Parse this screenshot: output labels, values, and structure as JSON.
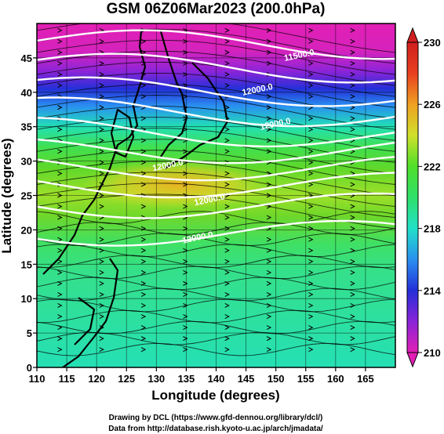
{
  "chart_data": {
    "type": "heatmap",
    "title": "GSM 06Z06Mar2023 (200.0hPa)",
    "xlabel": "Longitude (degrees)",
    "ylabel": "Latitude  (degrees)",
    "xlim": [
      110,
      170
    ],
    "ylim": [
      0,
      50
    ],
    "x_ticks": [
      110,
      115,
      120,
      125,
      130,
      135,
      140,
      145,
      150,
      155,
      160,
      165
    ],
    "y_ticks": [
      0,
      5,
      10,
      15,
      20,
      25,
      30,
      35,
      40,
      45
    ],
    "grid": true,
    "colorbar": {
      "min": 210,
      "max": 230,
      "ticks": [
        210,
        214,
        218,
        222,
        226,
        230
      ],
      "colors": [
        "#e21fb4",
        "#8a24d8",
        "#2430d8",
        "#2aa0f0",
        "#22e0c8",
        "#2fe06a",
        "#6ed82a",
        "#cfe02a",
        "#f0a023",
        "#e8401f",
        "#d01f1f"
      ]
    },
    "temperature_field": {
      "description_units": "K",
      "zones": [
        {
          "lat_from": 50,
          "lat_to": 44,
          "value": 210
        },
        {
          "lat_from": 44,
          "lat_to": 40,
          "value": 213
        },
        {
          "lat_from": 40,
          "lat_to": 36,
          "value": 218
        },
        {
          "lat_from": 36,
          "lat_to": 32,
          "value": 221
        },
        {
          "lat_from": 32,
          "lat_to": 28,
          "value": 223
        },
        {
          "lat_from": 28,
          "lat_to": 20,
          "value": 221
        },
        {
          "lat_from": 20,
          "lat_to": 0,
          "value": 219
        }
      ]
    },
    "contour_labels": [
      {
        "text": "11500.0",
        "lon": 154,
        "lat": 45
      },
      {
        "text": "12000.0",
        "lon": 147,
        "lat": 40
      },
      {
        "text": "12000.0",
        "lon": 150,
        "lat": 35
      },
      {
        "text": "12000.0",
        "lon": 132,
        "lat": 29
      },
      {
        "text": "12000.0",
        "lon": 139,
        "lat": 24
      },
      {
        "text": "12000.0",
        "lon": 137,
        "lat": 18.5
      }
    ]
  },
  "credits": {
    "line1": "Drawing by DCL (https://www.gfd-dennou.org/library/dcl/)",
    "line2": "Data from http://database.rish.kyoto-u.ac.jp/arch/jmadata/"
  }
}
